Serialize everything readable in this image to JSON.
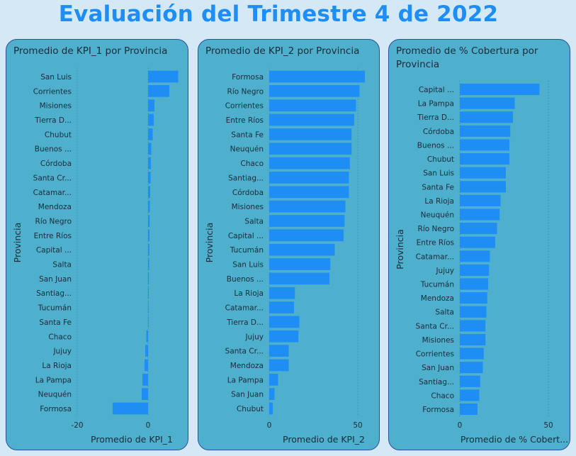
{
  "page": {
    "title": "Evaluación del Trimestre 4 de 2022"
  },
  "colors": {
    "bar": "#1e8ef5",
    "panel": "#4eb0cc",
    "border": "#2b4f9e",
    "text": "#1c2a3a"
  },
  "chart_data": [
    {
      "type": "bar",
      "orientation": "horizontal",
      "title": "Promedio de KPI_1 por Provincia",
      "xlabel": "Promedio de KPI_1",
      "ylabel": "Provincia",
      "xlim": [
        -20,
        10
      ],
      "xticks": [
        -20,
        0
      ],
      "categories": [
        "San Luis",
        "Corrientes",
        "Misiones",
        "Tierra D...",
        "Chubut",
        "Buenos ...",
        "Córdoba",
        "Santa Cr...",
        "Catamar...",
        "Mendoza",
        "Río Negro",
        "Entre Ríos",
        "Capital ...",
        "Salta",
        "San Juan",
        "Santiag...",
        "Tucumán",
        "Santa Fe",
        "Chaco",
        "Jujuy",
        "La Rioja",
        "La Pampa",
        "Neuquén",
        "Formosa"
      ],
      "values": [
        8.5,
        6.0,
        1.8,
        1.6,
        1.3,
        0.9,
        0.8,
        0.7,
        0.6,
        0.5,
        0.45,
        0.4,
        0.35,
        0.3,
        0.25,
        0.2,
        0.15,
        0.1,
        -0.5,
        -0.8,
        -1.0,
        -1.6,
        -1.8,
        -10.0
      ]
    },
    {
      "type": "bar",
      "orientation": "horizontal",
      "title": "Promedio de KPI_2 por Provincia",
      "xlabel": "Promedio de KPI_2",
      "ylabel": "Provincia",
      "xlim": [
        0,
        60
      ],
      "xticks": [
        0,
        50
      ],
      "categories": [
        "Formosa",
        "Río Negro",
        "Corrientes",
        "Entre Ríos",
        "Santa Fe",
        "Neuquén",
        "Chaco",
        "Santiag...",
        "Córdoba",
        "Misiones",
        "Salta",
        "Capital ...",
        "Tucumán",
        "San Luis",
        "Buenos ...",
        "La Rioja",
        "Catamar...",
        "Tierra D...",
        "Jujuy",
        "Santa Cr...",
        "Mendoza",
        "La Pampa",
        "San Juan",
        "Chubut"
      ],
      "values": [
        54,
        51,
        49,
        48,
        46.5,
        46.5,
        45.5,
        45,
        45,
        43,
        42.5,
        42,
        37,
        34.5,
        34,
        14.5,
        14,
        17,
        16.5,
        11,
        11,
        5,
        3,
        2
      ]
    },
    {
      "type": "bar",
      "orientation": "horizontal",
      "title": "Promedio de % Cobertura por Provincia",
      "xlabel": "Promedio de % Cobert...",
      "ylabel": "Provincia",
      "xlim": [
        0,
        60
      ],
      "xticks": [
        0,
        50
      ],
      "categories": [
        "Capital ...",
        "La Pampa",
        "Tierra D...",
        "Córdoba",
        "Buenos ...",
        "Chubut",
        "San Luis",
        "Santa Fe",
        "La Rioja",
        "Neuquén",
        "Río Negro",
        "Entre Ríos",
        "Catamar...",
        "Jujuy",
        "Tucumán",
        "Mendoza",
        "Salta",
        "Santa Cr...",
        "Misiones",
        "Corrientes",
        "San Juan",
        "Santiag...",
        "Chaco",
        "Formosa"
      ],
      "values": [
        45,
        31,
        30,
        28.5,
        28,
        28,
        26,
        26,
        23,
        22.5,
        21,
        20,
        17,
        16.5,
        16,
        15.5,
        15,
        14.5,
        14.5,
        13.5,
        13,
        11.5,
        11,
        10
      ]
    }
  ]
}
